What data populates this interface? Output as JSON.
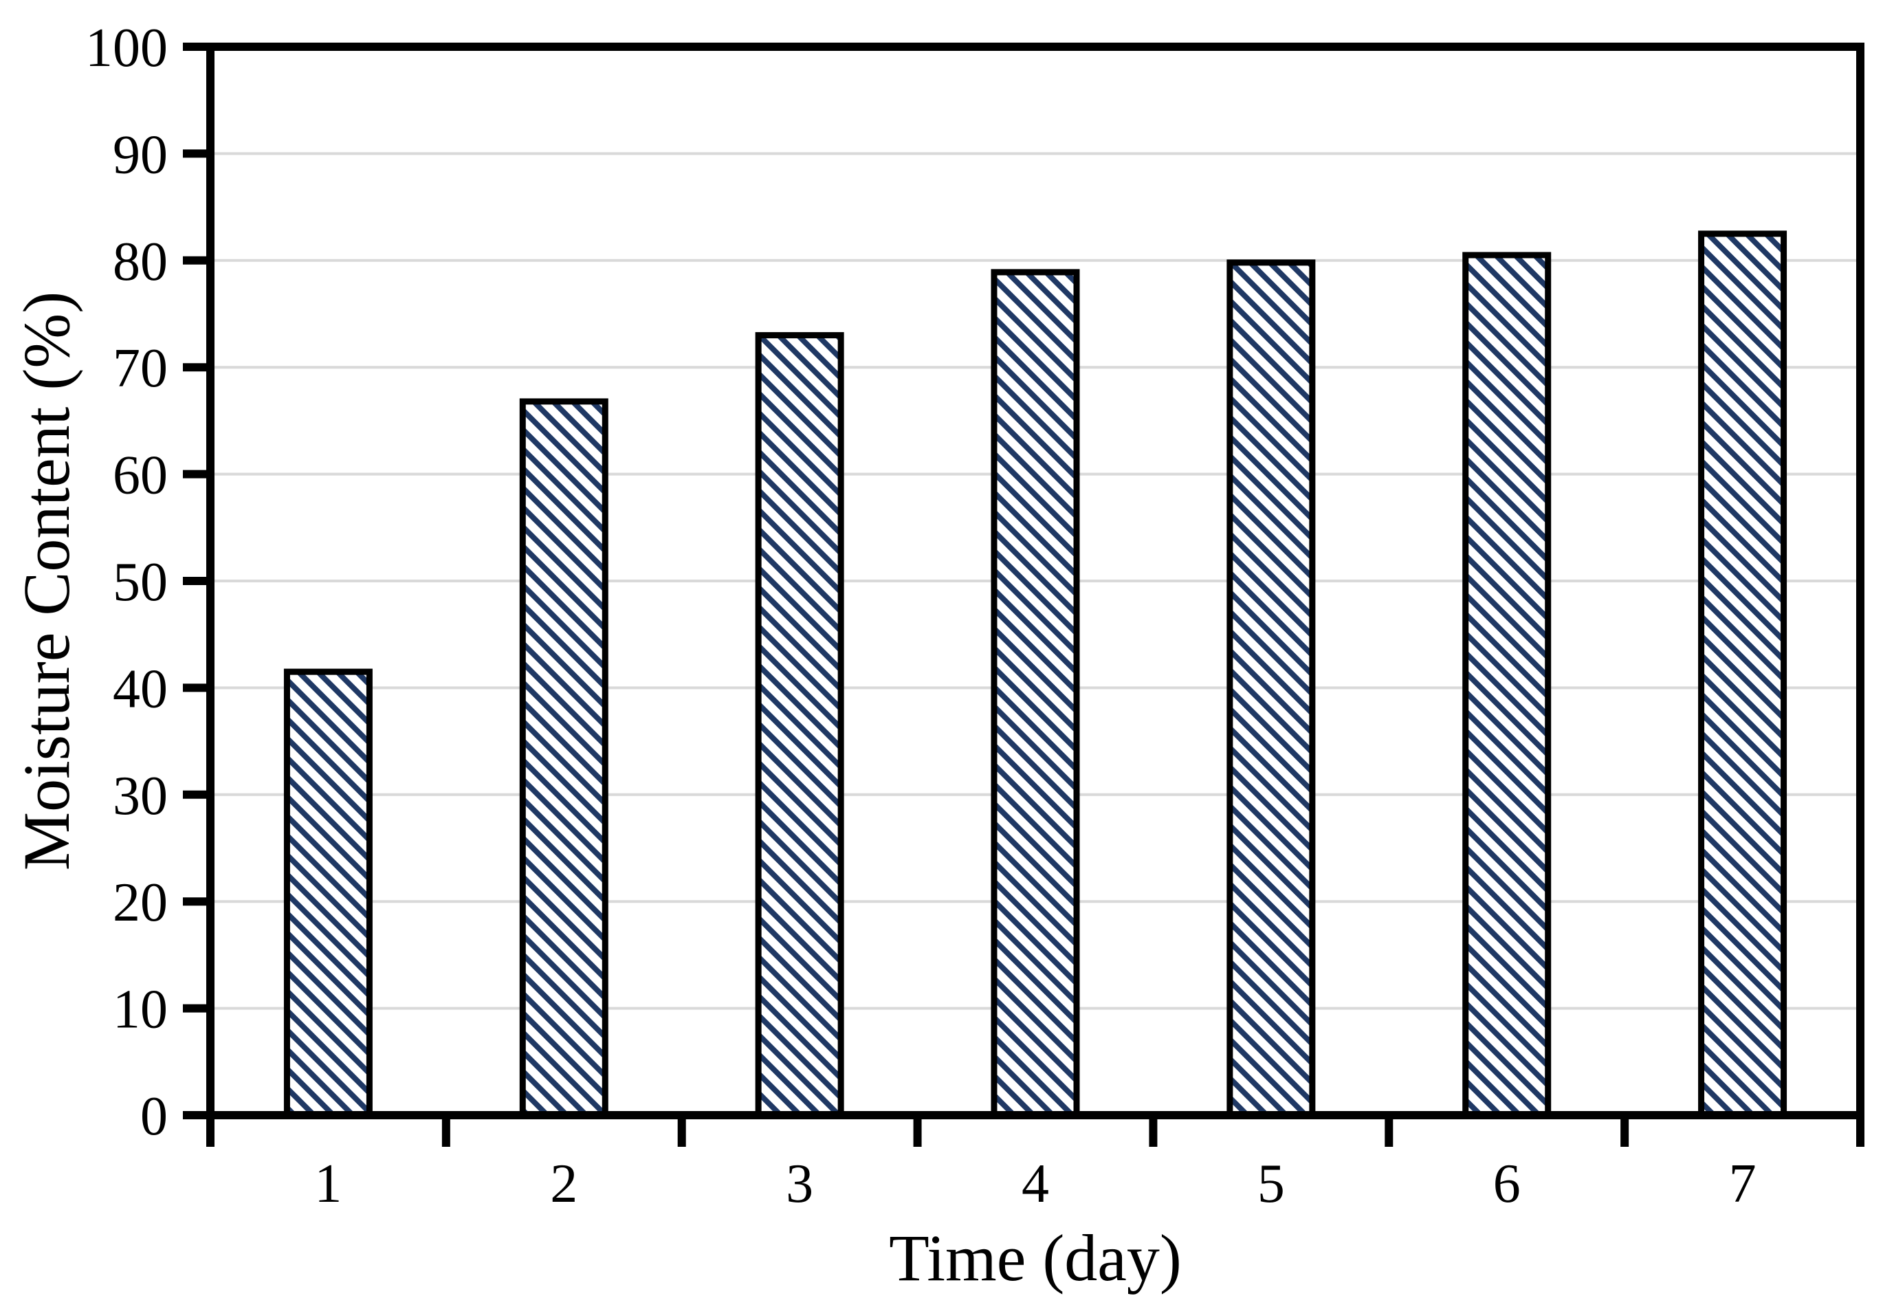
{
  "chart_data": {
    "type": "bar",
    "title": "",
    "xlabel": "Time (day)",
    "ylabel": "Moisture Content (%)",
    "categories": [
      "1",
      "2",
      "3",
      "4",
      "5",
      "6",
      "7"
    ],
    "values": [
      41.5,
      66.8,
      73.0,
      78.9,
      79.8,
      80.5,
      82.5
    ],
    "series_name": "Moisture Content",
    "ylim": [
      0,
      100
    ],
    "yticks": [
      0,
      10,
      20,
      30,
      40,
      50,
      60,
      70,
      80,
      90,
      100
    ],
    "grid": true,
    "legend_position": "none",
    "bar_style": {
      "fill": "#FFFFFF",
      "hatch_color": "#1F3864",
      "hatch_direction": "diagonal-down",
      "border_color": "#000000"
    },
    "colors": {
      "gridline": "#D9D9D9",
      "axis": "#000000",
      "text": "#000000",
      "background": "#FFFFFF"
    }
  }
}
